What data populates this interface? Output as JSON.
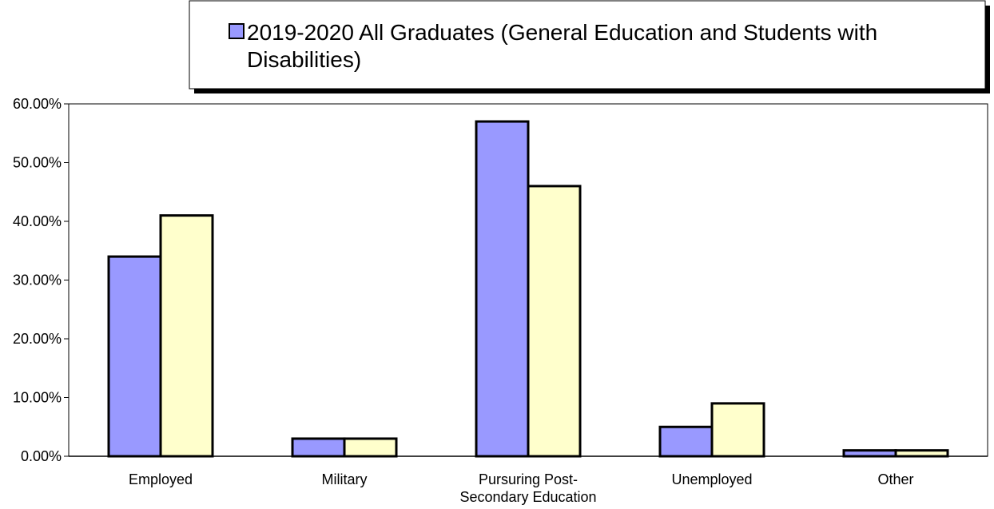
{
  "chart_data": {
    "type": "bar",
    "categories": [
      "Employed",
      "Military",
      "Pursuring Post-\nSecondary Education",
      "Unemployed",
      "Other"
    ],
    "series": [
      {
        "name": "2019-2020 All Graduates (General Education and Students with Disabilities)",
        "color": "#9999ff",
        "values": [
          0.34,
          0.03,
          0.57,
          0.05,
          0.01
        ]
      },
      {
        "color": "#ffffcc",
        "values": [
          0.41,
          0.03,
          0.46,
          0.09,
          0.01
        ]
      }
    ],
    "ylim": [
      0,
      0.6
    ],
    "yticks": [
      0,
      0.1,
      0.2,
      0.3,
      0.4,
      0.5,
      0.6
    ],
    "ytick_labels": [
      "0.00%",
      "10.00%",
      "20.00%",
      "30.00%",
      "40.00%",
      "50.00%",
      "60.00%"
    ],
    "title": "",
    "xlabel": "",
    "ylabel": "",
    "grid": false,
    "legend_position": "top"
  }
}
